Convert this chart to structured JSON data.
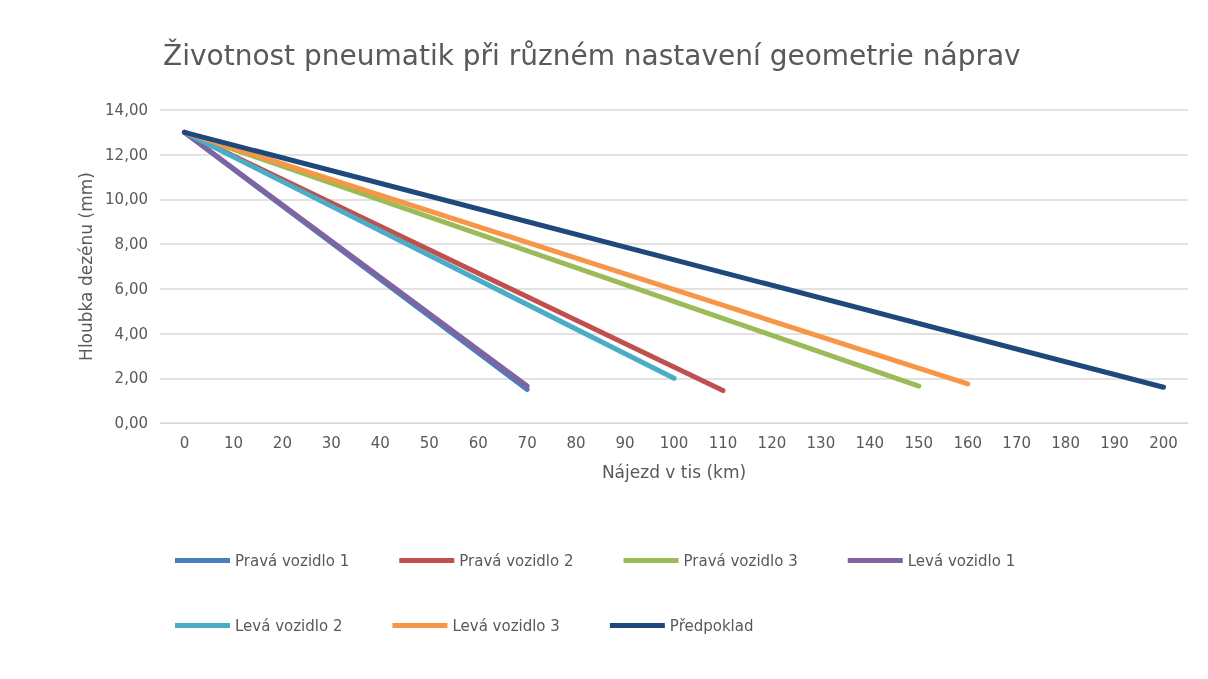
{
  "chart_data": {
    "type": "line",
    "title": "Životnost pneumatik při různém nastavení geometrie náprav",
    "xlabel": "Nájezd v tis (km)",
    "ylabel": "Hloubka dezénu (mm)",
    "xlim": [
      -5,
      205
    ],
    "xticks": [
      0,
      10,
      20,
      30,
      40,
      50,
      60,
      70,
      80,
      90,
      100,
      110,
      120,
      130,
      140,
      150,
      160,
      170,
      180,
      190,
      200
    ],
    "ylim": [
      0,
      14
    ],
    "yticks": [
      {
        "value": 0,
        "label": "0,00"
      },
      {
        "value": 2,
        "label": "2,00"
      },
      {
        "value": 4,
        "label": "4,00"
      },
      {
        "value": 6,
        "label": "6,00"
      },
      {
        "value": 8,
        "label": "8,00"
      },
      {
        "value": 10,
        "label": "10,00"
      },
      {
        "value": 12,
        "label": "12,00"
      },
      {
        "value": 14,
        "label": "14,00"
      }
    ],
    "grid": "y",
    "legend": "bottom",
    "marker": "none",
    "line_style": "solid",
    "series": [
      {
        "name": "Pravá vozidlo 1",
        "color": "#4a7ebb",
        "x": [
          0,
          70
        ],
        "values": [
          13,
          1.5
        ]
      },
      {
        "name": "Pravá vozidlo 2",
        "color": "#c0504d",
        "x": [
          0,
          110
        ],
        "values": [
          13,
          1.45
        ]
      },
      {
        "name": "Pravá vozidlo 3",
        "color": "#9bbb59",
        "x": [
          0,
          150
        ],
        "values": [
          13,
          1.65
        ]
      },
      {
        "name": "Levá vozidlo 1",
        "color": "#8064a2",
        "x": [
          0,
          70
        ],
        "values": [
          13,
          1.65
        ]
      },
      {
        "name": "Levá vozidlo 2",
        "color": "#4bacc6",
        "x": [
          0,
          100
        ],
        "values": [
          13,
          2.0
        ]
      },
      {
        "name": "Levá vozidlo 3",
        "color": "#f79646",
        "x": [
          0,
          160
        ],
        "values": [
          13,
          1.75
        ]
      },
      {
        "name": "Předpoklad",
        "color": "#1f497d",
        "x": [
          0,
          200
        ],
        "values": [
          13,
          1.6
        ]
      }
    ]
  }
}
